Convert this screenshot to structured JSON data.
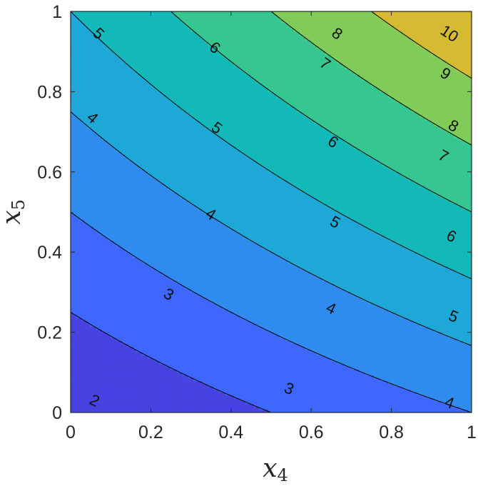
{
  "chart_data": {
    "type": "contour",
    "function": "z = 2*(1 + x4 + 2*x5 + x4*x5)",
    "x": {
      "label_base": "x",
      "label_sub": "4",
      "ticks": [
        "0",
        "0.2",
        "0.4",
        "0.6",
        "0.8",
        "1"
      ],
      "lim": [
        0,
        1
      ]
    },
    "y": {
      "label_base": "x",
      "label_sub": "5",
      "ticks": [
        "0",
        "0.2",
        "0.4",
        "0.6",
        "0.8",
        "1"
      ],
      "lim": [
        0,
        1
      ]
    },
    "levels": [
      2,
      3,
      4,
      5,
      6,
      7,
      8,
      9,
      10
    ],
    "fill_colors": [
      "#3e26a8",
      "#4743e1",
      "#3d67fd",
      "#2f8cee",
      "#1ea8d8",
      "#13b9b9",
      "#36c690",
      "#81cc58",
      "#d6ba32",
      "#f9e21b",
      "#f9fb0e"
    ],
    "contour_labels": [
      {
        "text": "2",
        "x4": 0.06,
        "y5": 0.03
      },
      {
        "text": "3",
        "x4": 0.245,
        "y5": 0.295
      },
      {
        "text": "3",
        "x4": 0.545,
        "y5": 0.06
      },
      {
        "text": "4",
        "x4": 0.055,
        "y5": 0.735
      },
      {
        "text": "4",
        "x4": 0.35,
        "y5": 0.495
      },
      {
        "text": "4",
        "x4": 0.65,
        "y5": 0.26
      },
      {
        "text": "4",
        "x4": 0.945,
        "y5": 0.025
      },
      {
        "text": "5",
        "x4": 0.07,
        "y5": 0.945
      },
      {
        "text": "5",
        "x4": 0.365,
        "y5": 0.71
      },
      {
        "text": "5",
        "x4": 0.66,
        "y5": 0.475
      },
      {
        "text": "5",
        "x4": 0.955,
        "y5": 0.24
      },
      {
        "text": "6",
        "x4": 0.36,
        "y5": 0.91
      },
      {
        "text": "6",
        "x4": 0.655,
        "y5": 0.675
      },
      {
        "text": "6",
        "x4": 0.95,
        "y5": 0.44
      },
      {
        "text": "7",
        "x4": 0.635,
        "y5": 0.87
      },
      {
        "text": "7",
        "x4": 0.93,
        "y5": 0.64
      },
      {
        "text": "8",
        "x4": 0.665,
        "y5": 0.945
      },
      {
        "text": "8",
        "x4": 0.955,
        "y5": 0.715
      },
      {
        "text": "9",
        "x4": 0.935,
        "y5": 0.845
      },
      {
        "text": "10",
        "x4": 0.945,
        "y5": 0.945
      }
    ]
  }
}
